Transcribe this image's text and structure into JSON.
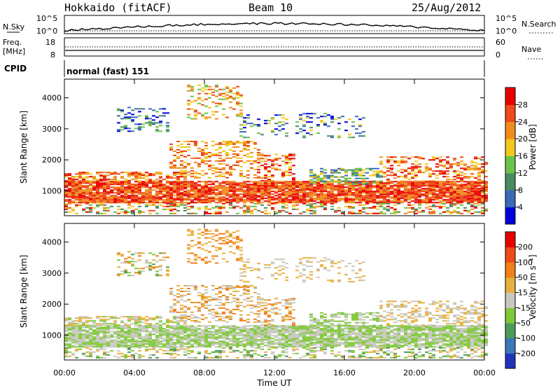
{
  "header": {
    "station": "Hokkaido (fitACF)",
    "beam": "Beam 10",
    "date": "25/Aug/2012"
  },
  "side_labels": {
    "nsky": "N.Sky",
    "nsearch": "N.Search",
    "freq_line1": "Freq.",
    "freq_line2": "[MHz]",
    "nave": "Nave",
    "cpid": "CPID",
    "cpid_value": "normal (fast) 151"
  },
  "noise_panel": {
    "left_ticks": [
      "10^5",
      "10^0"
    ],
    "right_ticks": [
      "10^5",
      "10^0"
    ]
  },
  "freq_panel": {
    "left_ticks": [
      "18",
      "8"
    ],
    "right_ticks": [
      "60",
      "0"
    ]
  },
  "chart_data": [
    {
      "type": "heatmap",
      "name": "power",
      "ylabel": "Slant Range [km]",
      "ylim": [
        200,
        4600
      ],
      "yticks": [
        1000,
        2000,
        3000,
        4000
      ],
      "xlim": [
        0,
        24
      ],
      "colorbar": {
        "label": "Power [dB]",
        "ticks": [
          "4",
          "8",
          "12",
          "16",
          "20",
          "24",
          "28"
        ],
        "colors": [
          "#0000dd",
          "#3a6ab8",
          "#4a8a62",
          "#6cc24a",
          "#f2c81e",
          "#f08c1c",
          "#ee4a1a",
          "#e80000"
        ]
      }
    },
    {
      "type": "heatmap",
      "name": "velocity",
      "ylabel": "Slant Range [km]",
      "ylim": [
        200,
        4600
      ],
      "yticks": [
        1000,
        2000,
        3000,
        4000
      ],
      "xlim": [
        0,
        24
      ],
      "colorbar": {
        "label": "Velocity [m s⁻¹]",
        "ticks": [
          "200",
          "100",
          "50",
          "15",
          "-15",
          "-50",
          "-100",
          "-200"
        ],
        "colors": [
          "#2233bb",
          "#3a78b8",
          "#4e9a58",
          "#80c83a",
          "#c8c8c0",
          "#e8b040",
          "#f08018",
          "#ee4a1a",
          "#e80000"
        ]
      }
    }
  ],
  "time_axis": {
    "label": "Time UT",
    "ticks": [
      "00:00",
      "04:00",
      "08:00",
      "12:00",
      "16:00",
      "20:00",
      "00:00"
    ]
  }
}
